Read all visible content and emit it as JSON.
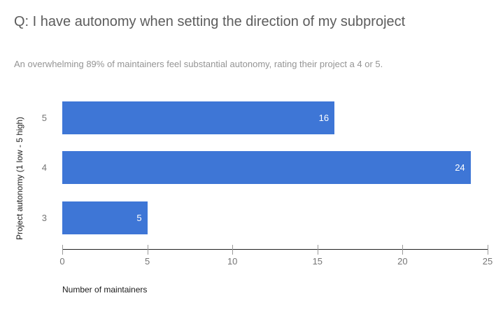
{
  "chart_data": {
    "type": "bar",
    "orientation": "horizontal",
    "title": "Q: I have autonomy when setting the direction of my subproject",
    "subtitle": "An overwhelming 89% of maintainers feel substantial autonomy, rating their project a 4 or 5.",
    "categories": [
      "5",
      "4",
      "3"
    ],
    "values": [
      16,
      24,
      5
    ],
    "xlabel": "Number of maintainers",
    "ylabel": "Project autonomy (1 low - 5 high)",
    "xlim": [
      0,
      25
    ],
    "xticks": [
      0,
      5,
      10,
      15,
      20,
      25
    ],
    "grid": false,
    "legend_position": "none",
    "value_labels_position": "inside-end"
  },
  "colors": {
    "bar": "#3e76d6",
    "value_label": "#ffffff",
    "title": "#5c5c5c",
    "subtitle": "#949494",
    "tick_label": "#757575",
    "axis_title": "#1a1a1a",
    "axis_line": "#222222",
    "background": "#ffffff"
  }
}
